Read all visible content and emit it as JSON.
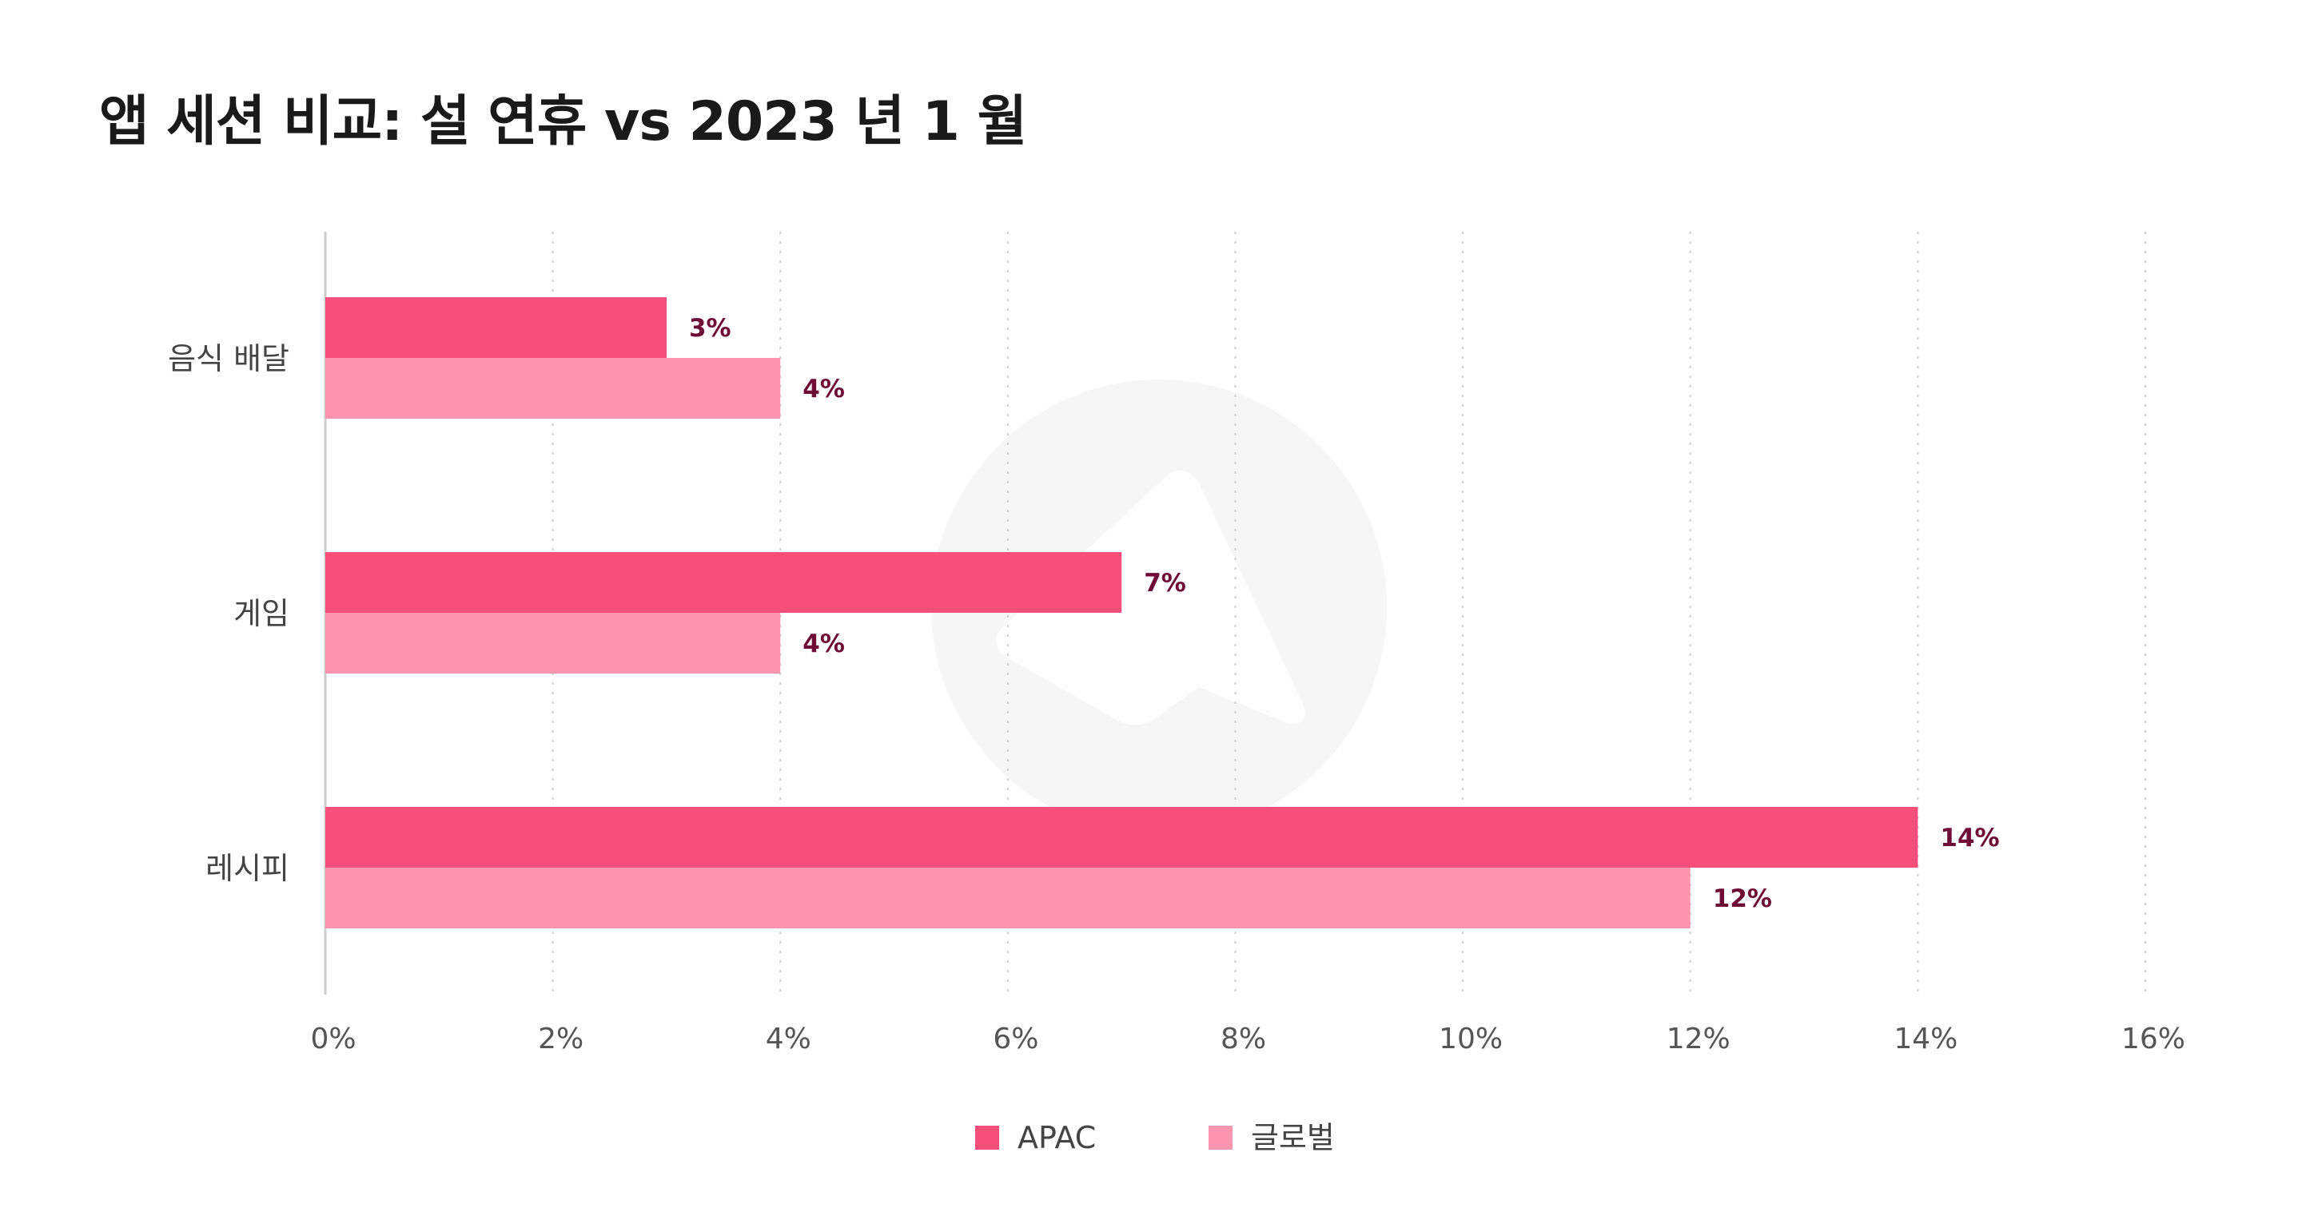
{
  "header": {
    "title": "앱 세션 비교: 설 연휴 vs 2023 년 1 월"
  },
  "chart_data": {
    "type": "bar",
    "orientation": "horizontal",
    "title": "앱 세션 비교: 설 연휴 vs 2023 년 1 월",
    "categories": [
      "음식 배달",
      "게임",
      "레시피"
    ],
    "series": [
      {
        "name": "APAC",
        "color": "#f74f7b",
        "values": [
          3,
          7,
          14
        ],
        "labels": [
          "3%",
          "7%",
          "14%"
        ]
      },
      {
        "name": "글로벌",
        "color": "#fb94ae",
        "values": [
          4,
          4,
          12
        ],
        "labels": [
          "4%",
          "4%",
          "12%"
        ]
      }
    ],
    "xlim": [
      0,
      16
    ],
    "x_ticks": [
      0,
      2,
      4,
      6,
      8,
      10,
      12,
      14,
      16
    ],
    "x_tick_labels": [
      "0%",
      "2%",
      "4%",
      "6%",
      "8%",
      "10%",
      "12%",
      "14%",
      "16%"
    ],
    "grid": "vertical-dotted",
    "legend_position": "bottom-center"
  }
}
